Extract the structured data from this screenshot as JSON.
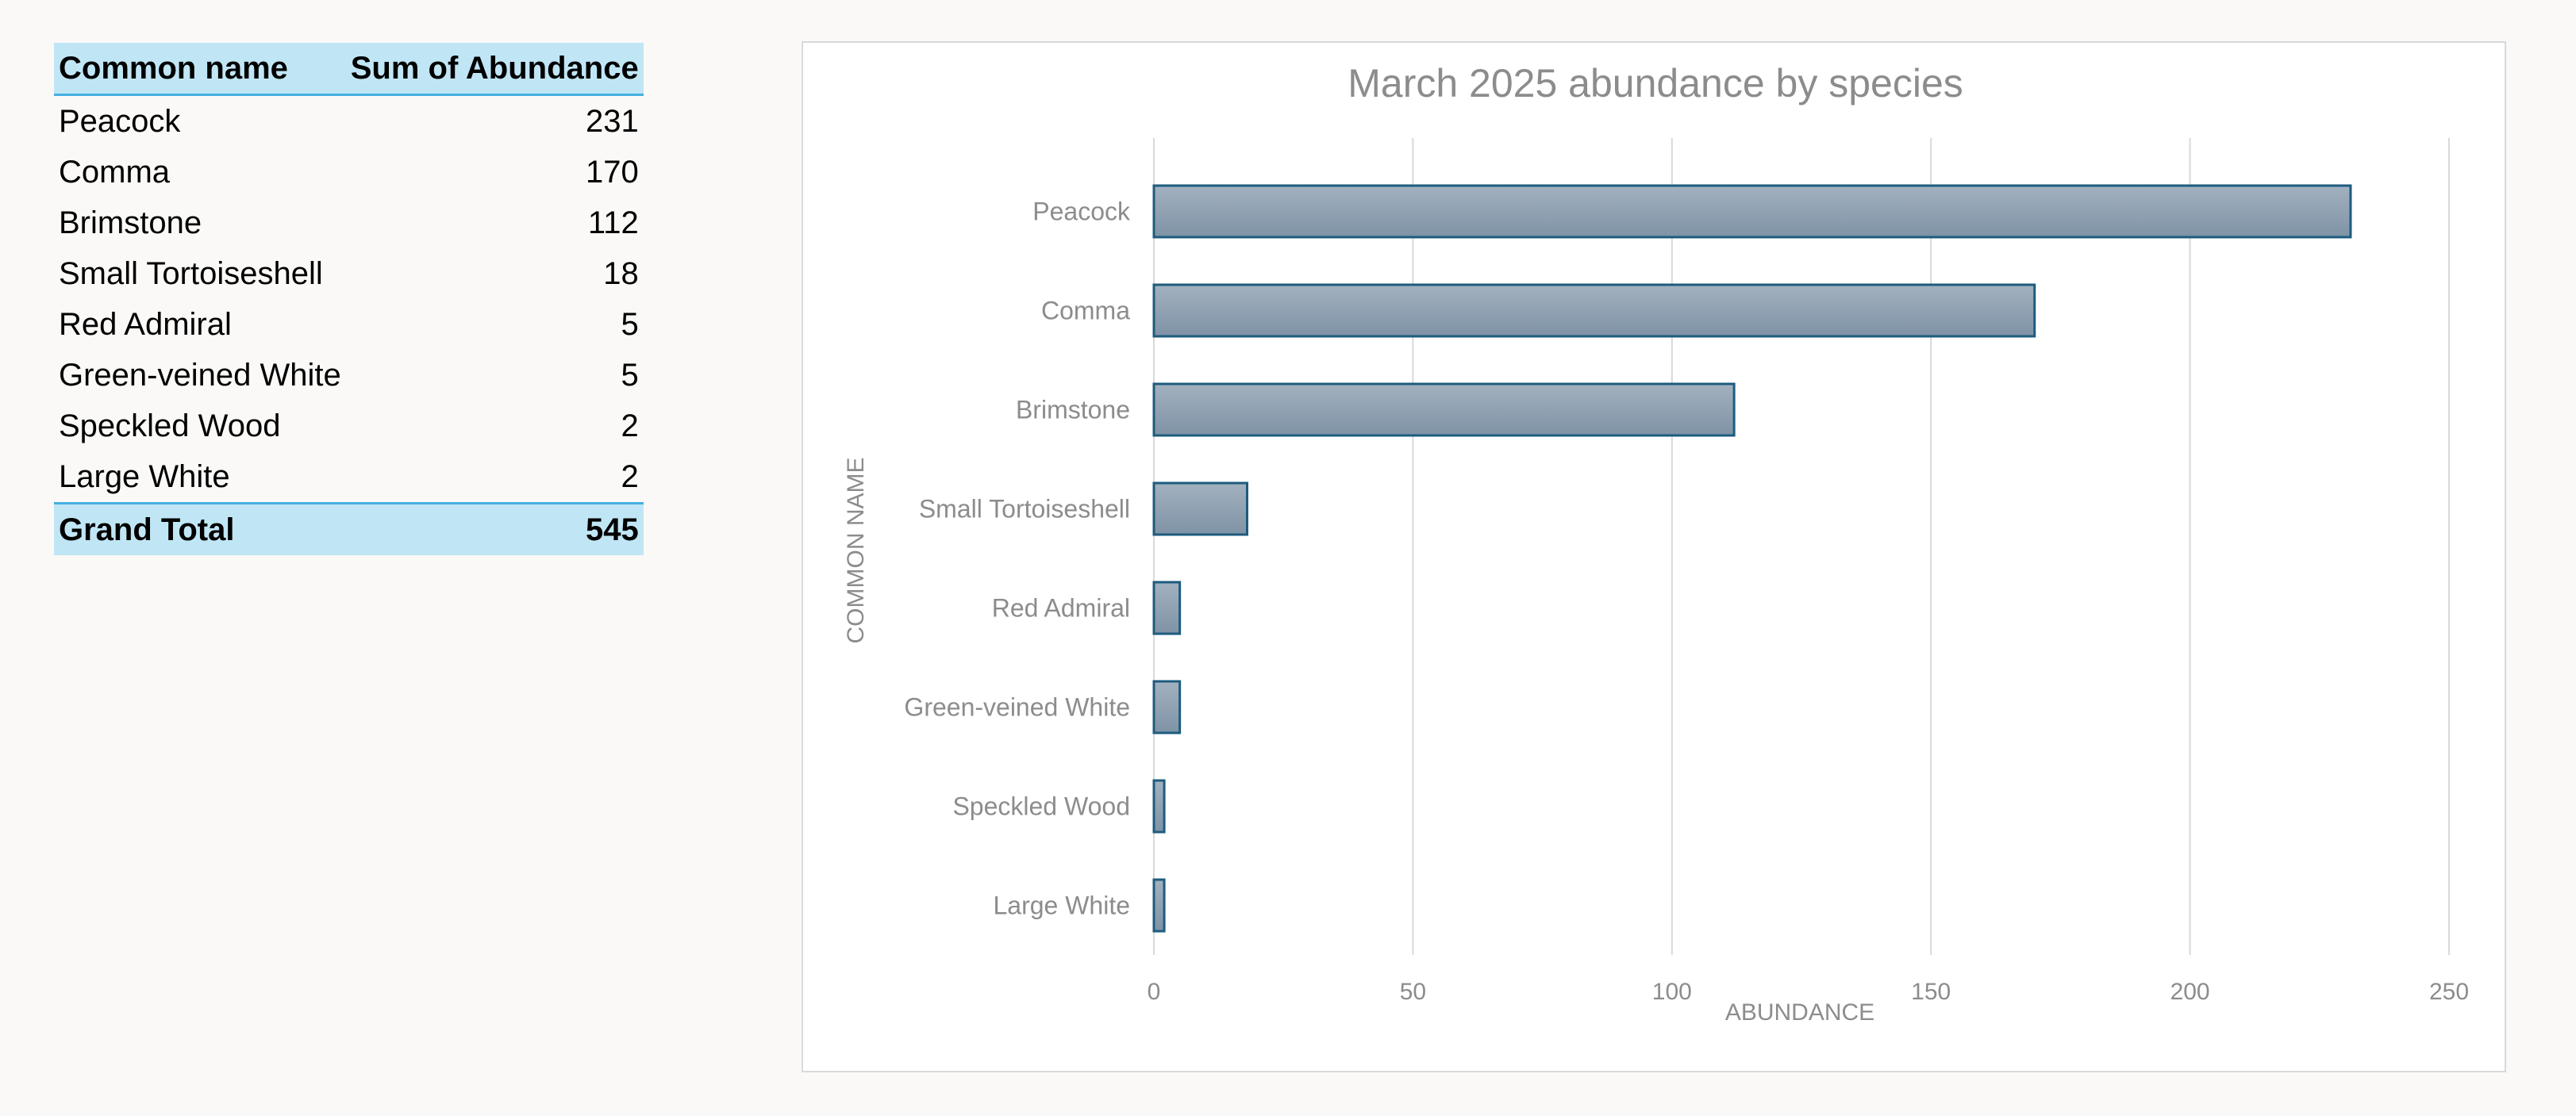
{
  "table": {
    "headers": {
      "name": "Common name",
      "value": "Sum of Abundance"
    },
    "rows": [
      {
        "name": "Peacock",
        "value": "231"
      },
      {
        "name": "Comma",
        "value": "170"
      },
      {
        "name": "Brimstone",
        "value": "112"
      },
      {
        "name": "Small Tortoiseshell",
        "value": "18"
      },
      {
        "name": "Red Admiral",
        "value": "5"
      },
      {
        "name": "Green-veined White",
        "value": "5"
      },
      {
        "name": "Speckled Wood",
        "value": "2"
      },
      {
        "name": "Large White",
        "value": "2"
      }
    ],
    "total": {
      "label": "Grand Total",
      "value": "545"
    },
    "colors": {
      "header_fill": "#c0e6f5",
      "header_rule": "#45b0e1"
    }
  },
  "chart_data": {
    "type": "bar",
    "orientation": "horizontal",
    "title": "March 2025 abundance by species",
    "xlabel": "ABUNDANCE",
    "ylabel": "COMMON NAME",
    "categories": [
      "Peacock",
      "Comma",
      "Brimstone",
      "Small Tortoiseshell",
      "Red Admiral",
      "Green-veined White",
      "Speckled Wood",
      "Large White"
    ],
    "values": [
      231,
      170,
      112,
      18,
      5,
      5,
      2,
      2
    ],
    "xlim": [
      0,
      250
    ],
    "xticks": [
      0,
      50,
      100,
      150,
      200,
      250
    ],
    "grid": "vertical",
    "legend": "none",
    "colors": {
      "bar_fill_top": "#a2b1bf",
      "bar_fill_bottom": "#7f93a6",
      "bar_stroke": "#1d5c7e",
      "grid": "#d9d9d9",
      "text": "#8c8c8c"
    }
  }
}
